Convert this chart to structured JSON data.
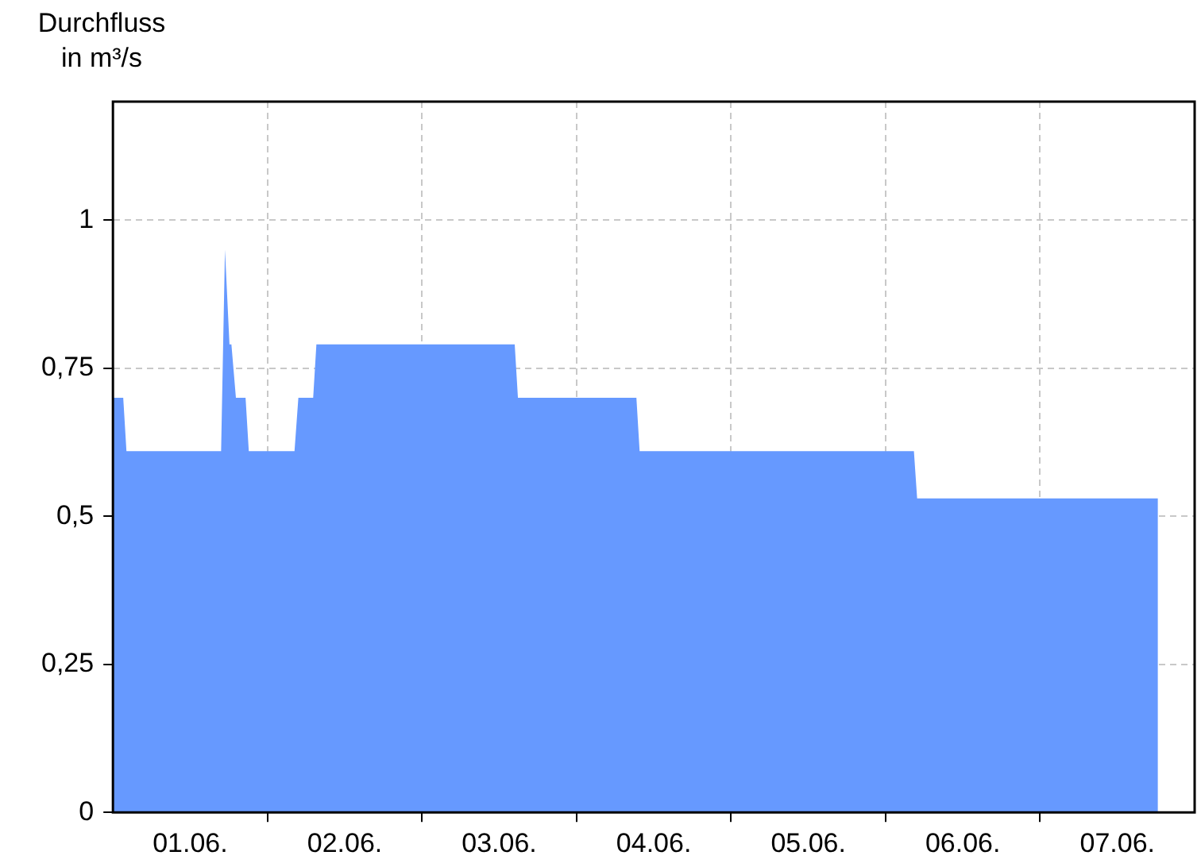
{
  "chart_data": {
    "type": "area",
    "ylabel": "Durchfluss in m³/s",
    "x": [
      "--06-01T00:00",
      "--06-01T01:36",
      "--06-01T02:06",
      "--06-01T16:48",
      "--06-01T17:24",
      "--06-01T18:06",
      "--06-01T18:24",
      "--06-01T19:06",
      "--06-01T20:36",
      "--06-01T21:06",
      "--06-02T04:12",
      "--06-02T04:48",
      "--06-02T07:06",
      "--06-02T07:36",
      "--06-03T14:24",
      "--06-03T14:54",
      "--06-04T09:18",
      "--06-04T09:48",
      "--06-06T04:24",
      "--06-06T04:54",
      "--06-07T18:18"
    ],
    "series": [
      {
        "color": "#6699ff",
        "values": [
          0.7,
          0.7,
          0.61,
          0.61,
          0.95,
          0.79,
          0.79,
          0.7,
          0.7,
          0.61,
          0.61,
          0.7,
          0.7,
          0.79,
          0.79,
          0.7,
          0.7,
          0.61,
          0.61,
          0.53,
          0.53
        ]
      }
    ],
    "xlim": [
      "--06-01T00:00",
      "--06-08T00:00"
    ],
    "xticks": [
      {
        "value": "--06-01T12:00",
        "label": "01.06."
      },
      {
        "value": "--06-02T00:00",
        "label": null
      },
      {
        "value": "--06-02T12:00",
        "label": "02.06."
      },
      {
        "value": "--06-03T00:00",
        "label": null
      },
      {
        "value": "--06-03T12:00",
        "label": "03.06."
      },
      {
        "value": "--06-04T00:00",
        "label": null
      },
      {
        "value": "--06-04T12:00",
        "label": "04.06."
      },
      {
        "value": "--06-05T00:00",
        "label": null
      },
      {
        "value": "--06-05T12:00",
        "label": "05.06."
      },
      {
        "value": "--06-06T00:00",
        "label": null
      },
      {
        "value": "--06-06T12:00",
        "label": "06.06."
      },
      {
        "value": "--06-07T00:00",
        "label": null
      },
      {
        "value": "--06-07T12:00",
        "label": "07.06."
      }
    ],
    "ylim": [
      0,
      1.2
    ],
    "yticks": [
      0,
      {
        "value": 0.25,
        "label": "0,25"
      },
      {
        "value": 0.5,
        "label": "0,5"
      },
      {
        "value": 0.75,
        "label": "0,75"
      },
      1
    ],
    "grid": true,
    "legend": false
  }
}
